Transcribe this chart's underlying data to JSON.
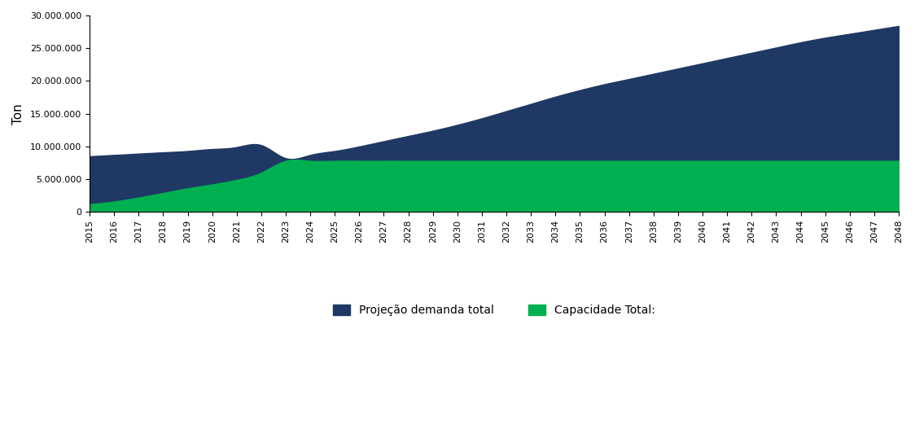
{
  "years": [
    2015,
    2016,
    2017,
    2018,
    2019,
    2020,
    2021,
    2022,
    2023,
    2024,
    2025,
    2026,
    2027,
    2028,
    2029,
    2030,
    2031,
    2032,
    2033,
    2034,
    2035,
    2036,
    2037,
    2038,
    2039,
    2040,
    2041,
    2042,
    2043,
    2044,
    2045,
    2046,
    2047,
    2048
  ],
  "demanda_total": [
    8500000,
    8700000,
    8900000,
    9100000,
    9300000,
    9600000,
    9900000,
    10200000,
    8200000,
    8700000,
    9300000,
    10000000,
    10800000,
    11600000,
    12400000,
    13300000,
    14300000,
    15400000,
    16500000,
    17600000,
    18600000,
    19500000,
    20300000,
    21100000,
    21900000,
    22700000,
    23500000,
    24300000,
    25100000,
    25900000,
    26600000,
    27200000,
    27800000,
    28400000
  ],
  "capacidade_total": [
    1200000,
    1600000,
    2200000,
    2900000,
    3600000,
    4200000,
    4900000,
    6000000,
    7800000,
    7800000,
    7800000,
    7800000,
    7800000,
    7800000,
    7800000,
    7800000,
    7800000,
    7800000,
    7800000,
    7800000,
    7800000,
    7800000,
    7800000,
    7800000,
    7800000,
    7800000,
    7800000,
    7800000,
    7800000,
    7800000,
    7800000,
    7800000,
    7800000,
    7800000
  ],
  "color_demanda": "#1F3864",
  "color_capacidade": "#00B050",
  "ylabel": "Ton",
  "ylim_max": 30000000,
  "legend_demanda": "Projeção demanda total",
  "legend_capacidade": "Capacidade Total:",
  "background_color": "#FFFFFF",
  "tick_fontsize": 8,
  "ylabel_fontsize": 11,
  "legend_fontsize": 10
}
